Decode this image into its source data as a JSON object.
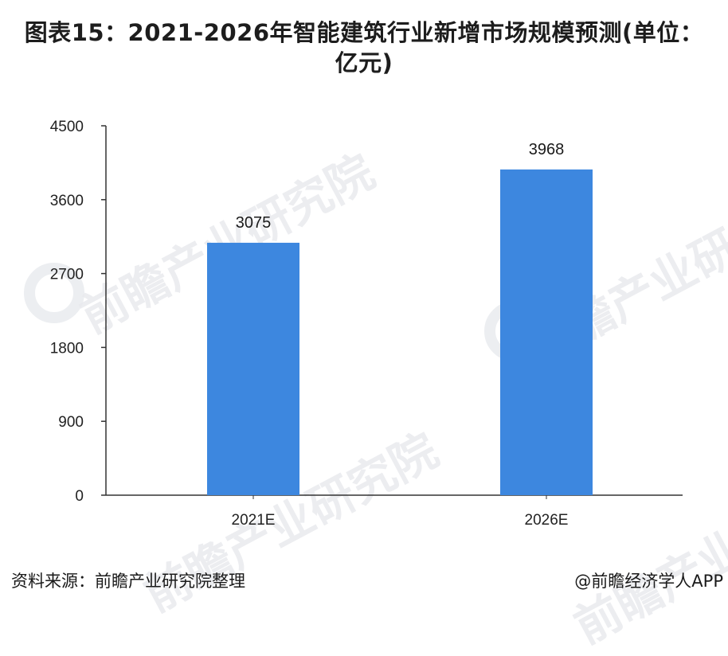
{
  "title": "图表15：2021-2026年智能建筑行业新增市场规模预测(单位：亿元)",
  "footer": {
    "source": "资料来源：前瞻产业研究院整理",
    "credit": "@前瞻经济学人APP"
  },
  "watermark": {
    "text": "前瞻产业研究院"
  },
  "colors": {
    "bar": "#3d87df",
    "axis": "#333333"
  },
  "chart_data": {
    "type": "bar",
    "title": "图表15：2021-2026年智能建筑行业新增市场规模预测(单位：亿元)",
    "categories": [
      "2021E",
      "2026E"
    ],
    "values": [
      3075,
      3968
    ],
    "data_labels": [
      "3075",
      "3968"
    ],
    "xlabel": "",
    "ylabel": "",
    "ylim": [
      0,
      4500
    ],
    "yticks": [
      0,
      900,
      1800,
      2700,
      3600,
      4500
    ],
    "ytick_labels": [
      "0",
      "900",
      "1800",
      "2700",
      "3600",
      "4500"
    ],
    "grid": false,
    "legend": "none"
  }
}
